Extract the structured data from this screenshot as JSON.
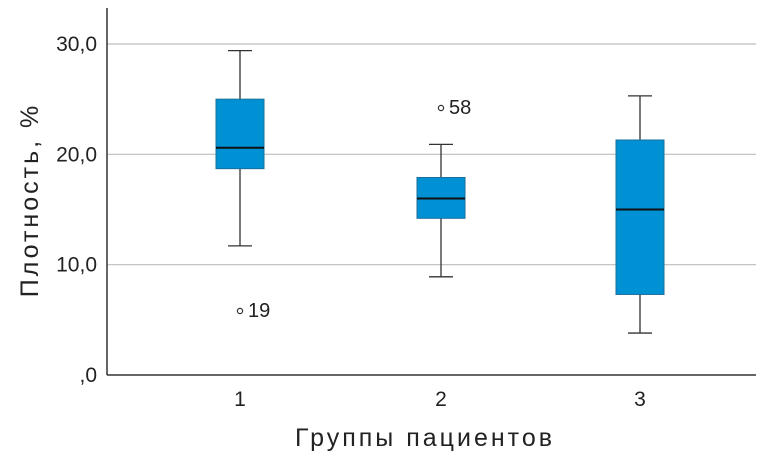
{
  "chart_data": {
    "type": "boxplot",
    "xlabel": "Группы пациентов",
    "ylabel": "Плотность, %",
    "ylim": [
      0,
      33
    ],
    "yticks": [
      {
        "value": 0,
        "label": ",0"
      },
      {
        "value": 10,
        "label": "10,0"
      },
      {
        "value": 20,
        "label": "20,0"
      },
      {
        "value": 30,
        "label": "30,0"
      }
    ],
    "grid": true,
    "box_color": "#0091d5",
    "categories": [
      "1",
      "2",
      "3"
    ],
    "boxes": [
      {
        "category": "1",
        "whisker_low": 11.7,
        "q1": 18.7,
        "median": 20.6,
        "q3": 25.0,
        "whisker_high": 29.4,
        "outliers": [
          {
            "value": 5.8,
            "label": "19"
          }
        ]
      },
      {
        "category": "2",
        "whisker_low": 8.9,
        "q1": 14.2,
        "median": 16.0,
        "q3": 17.9,
        "whisker_high": 20.9,
        "outliers": [
          {
            "value": 24.2,
            "label": "58"
          }
        ]
      },
      {
        "category": "3",
        "whisker_low": 3.8,
        "q1": 7.3,
        "median": 15.0,
        "q3": 21.3,
        "whisker_high": 25.3,
        "outliers": []
      }
    ]
  }
}
